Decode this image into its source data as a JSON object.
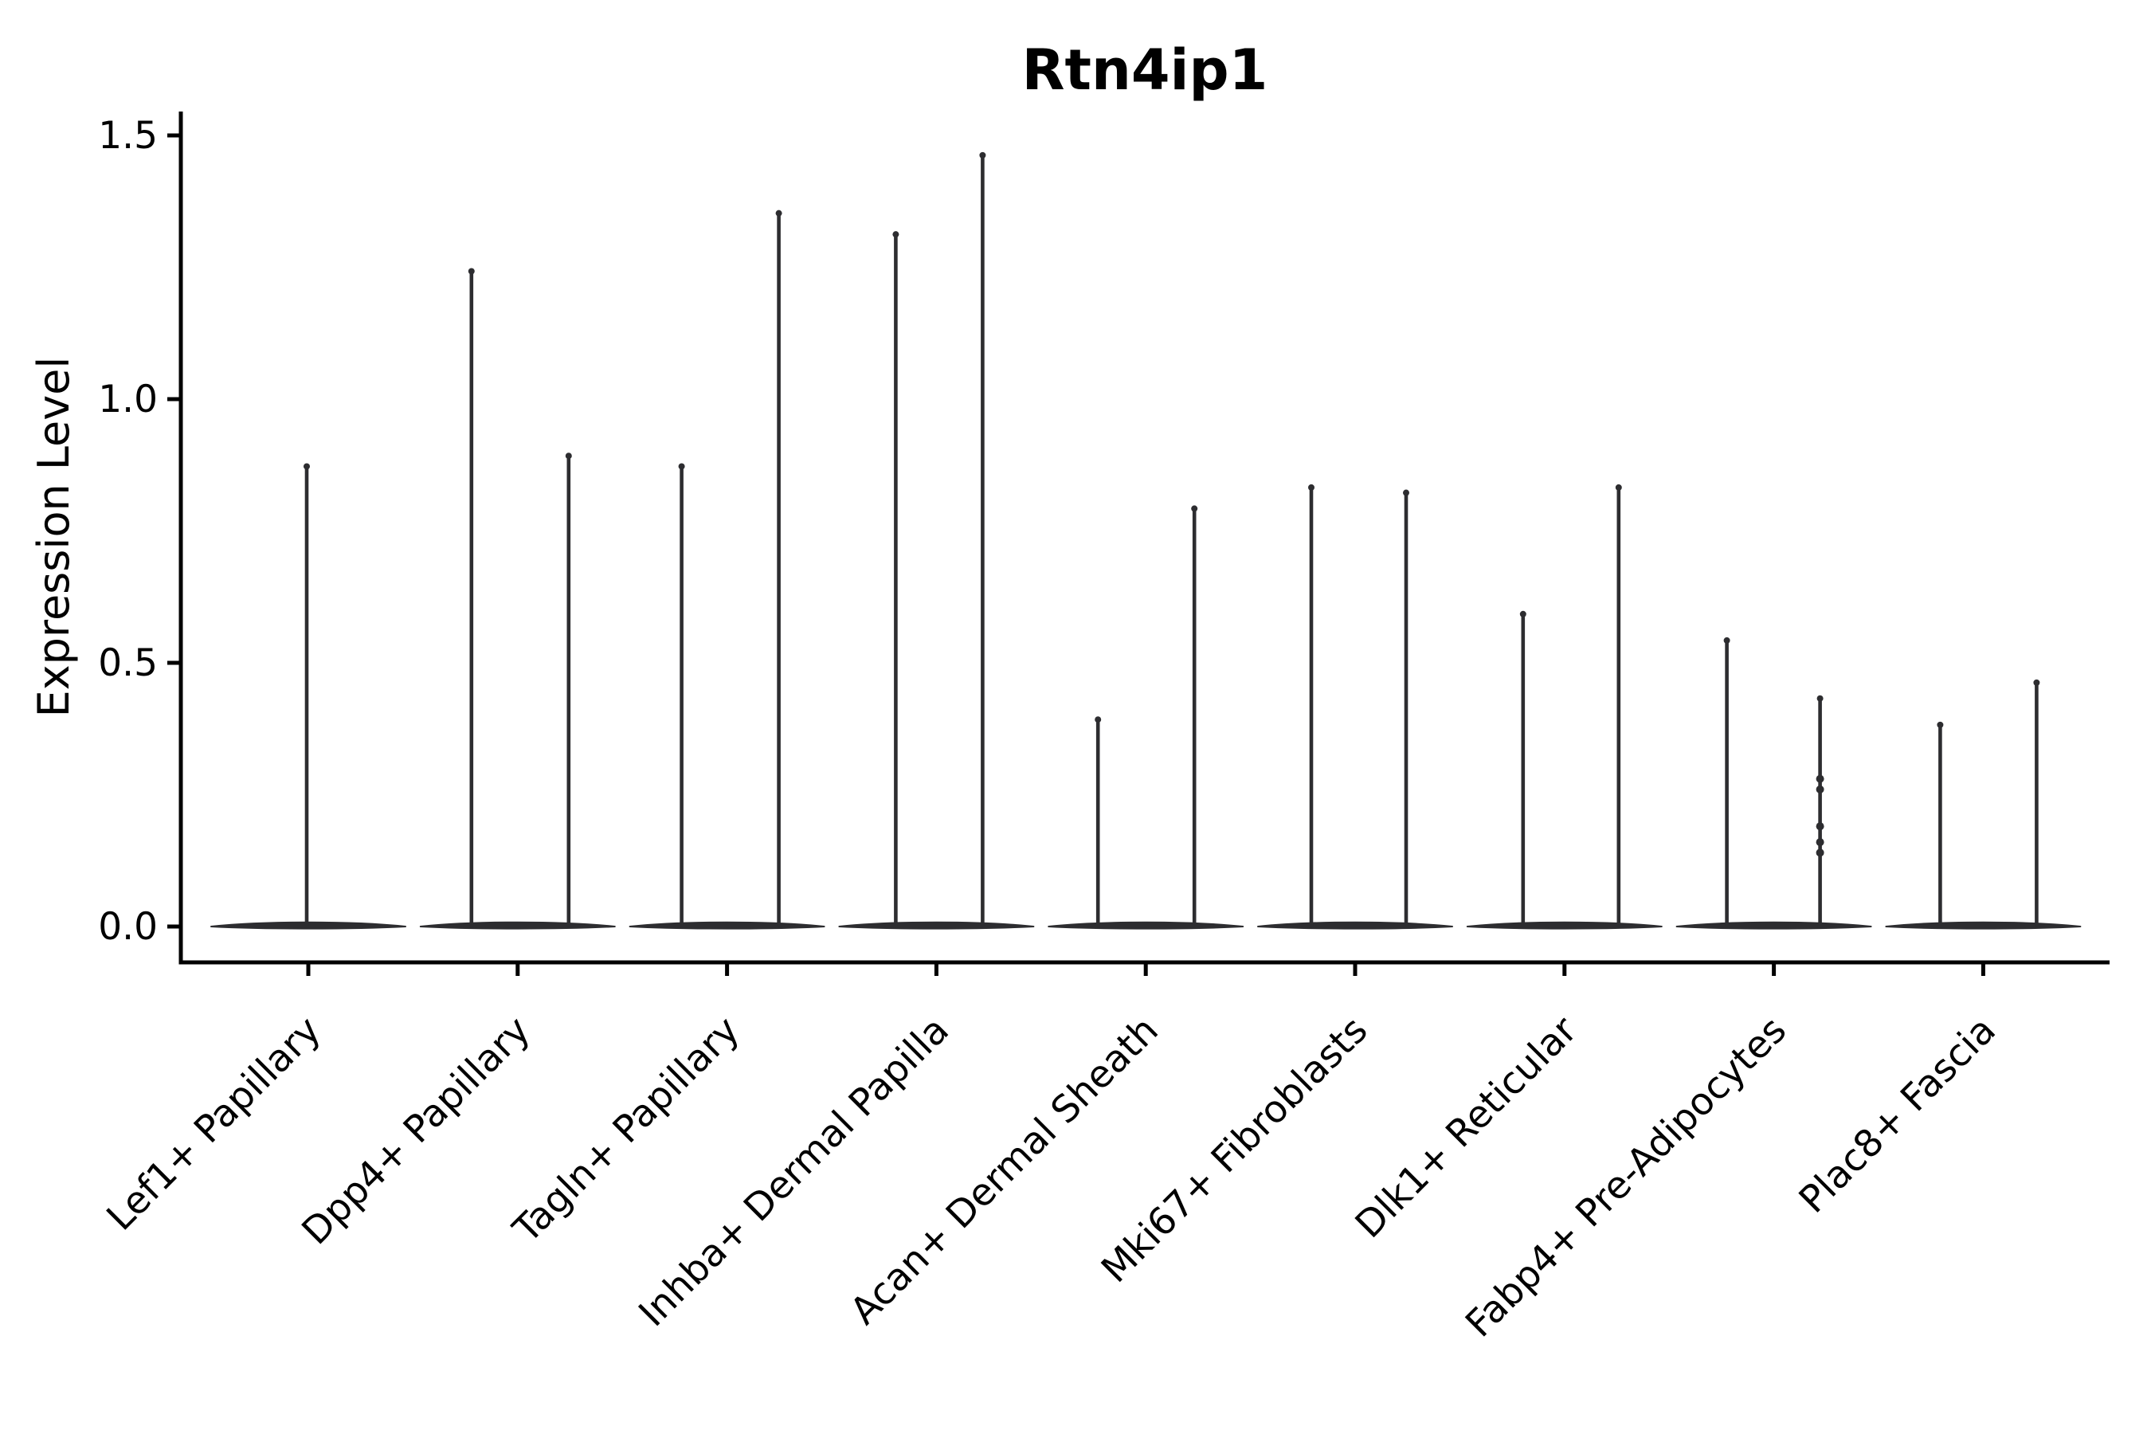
{
  "figure": {
    "background": "#ffffff"
  },
  "chart_data": {
    "type": "violin",
    "title": "Rtn4ip1",
    "xlabel": "",
    "ylabel": "Expression Level",
    "ytick_labels": [
      "0.0",
      "0.5",
      "1.0",
      "1.5"
    ],
    "ytick_values": [
      0.0,
      0.5,
      1.0,
      1.5
    ],
    "ylim": [
      -0.07,
      1.55
    ],
    "grid": false,
    "legend_position": "none",
    "ink_color": "#2d2d30",
    "axis_color": "#000000",
    "categories": [
      "Lef1+ Papillary",
      "Dpp4+ Papillary",
      "Tagln+ Papillary",
      "Inhba+ Dermal Papilla",
      "Acan+ Dermal Sheath",
      "Mki67+ Fibroblasts",
      "Dlk1+ Reticular",
      "Fabp4+ Pre-Adipocytes",
      "Plac8+ Fascia"
    ],
    "violins": [
      {
        "category": "Lef1+ Papillary",
        "body_at_zero": true,
        "spikes": [
          {
            "dx": -2,
            "max": 0.88
          }
        ]
      },
      {
        "category": "Dpp4+ Papillary",
        "body_at_zero": true,
        "spikes": [
          {
            "dx": -58,
            "max": 1.25
          },
          {
            "dx": 64,
            "max": 0.9
          }
        ]
      },
      {
        "category": "Tagln+ Papillary",
        "body_at_zero": true,
        "spikes": [
          {
            "dx": -57,
            "max": 0.88
          },
          {
            "dx": 65,
            "max": 1.36
          }
        ]
      },
      {
        "category": "Inhba+ Dermal Papilla",
        "body_at_zero": true,
        "spikes": [
          {
            "dx": -51,
            "max": 1.32
          },
          {
            "dx": 58,
            "max": 1.47
          }
        ]
      },
      {
        "category": "Acan+ Dermal Sheath",
        "body_at_zero": true,
        "spikes": [
          {
            "dx": -60,
            "max": 0.4
          },
          {
            "dx": 61,
            "max": 0.8
          }
        ]
      },
      {
        "category": "Mki67+ Fibroblasts",
        "body_at_zero": true,
        "spikes": [
          {
            "dx": -55,
            "max": 0.84
          },
          {
            "dx": 64,
            "max": 0.83
          }
        ]
      },
      {
        "category": "Dlk1+ Reticular",
        "body_at_zero": true,
        "spikes": [
          {
            "dx": -52,
            "max": 0.6
          },
          {
            "dx": 68,
            "max": 0.84
          }
        ]
      },
      {
        "category": "Fabp4+ Pre-Adipocytes",
        "body_at_zero": true,
        "spikes": [
          {
            "dx": -59,
            "max": 0.55
          },
          {
            "dx": 58,
            "max": 0.44,
            "dots": [
              0.28,
              0.26,
              0.19,
              0.16,
              0.14
            ]
          }
        ]
      },
      {
        "category": "Plac8+ Fascia",
        "body_at_zero": true,
        "spikes": [
          {
            "dx": -54,
            "max": 0.39
          },
          {
            "dx": 67,
            "max": 0.47
          }
        ]
      }
    ]
  }
}
